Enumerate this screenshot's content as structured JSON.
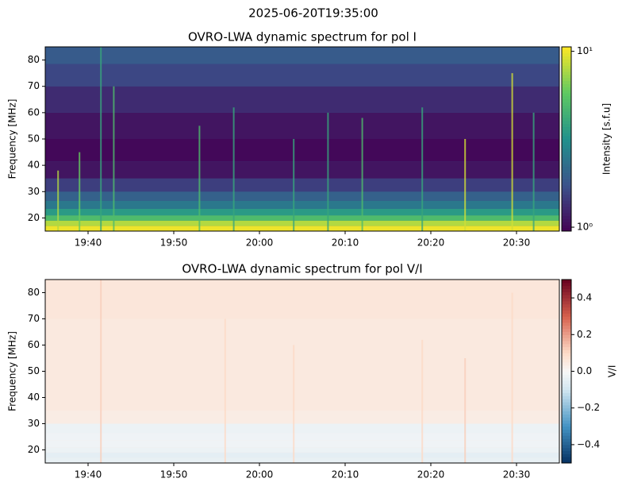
{
  "title": "2025-06-20T19:35:00",
  "chart_data": [
    {
      "type": "heatmap",
      "title": "OVRO-LWA dynamic spectrum for pol I",
      "ylabel": "Frequency [MHz]",
      "colorbar_label": "Intensity [s.f.u]",
      "colormap": "viridis",
      "colorbar_log": true,
      "xlim": [
        1175,
        1235
      ],
      "xticks": [
        {
          "value": 1180,
          "label": "19:40"
        },
        {
          "value": 1190,
          "label": "19:50"
        },
        {
          "value": 1200,
          "label": "20:00"
        },
        {
          "value": 1210,
          "label": "20:10"
        },
        {
          "value": 1220,
          "label": "20:20"
        },
        {
          "value": 1230,
          "label": "20:30"
        }
      ],
      "ylim": [
        15,
        85
      ],
      "yticks": [
        20,
        30,
        40,
        50,
        60,
        70,
        80
      ],
      "clim": [
        0.95,
        10.6
      ],
      "cticks": [
        {
          "value": 1,
          "label": "10⁰"
        },
        {
          "value": 10,
          "label": "10¹"
        }
      ],
      "frequencies": [
        16,
        18,
        20,
        22,
        25,
        28,
        32,
        38,
        45,
        55,
        65,
        75,
        82
      ],
      "intensity": [
        10,
        8,
        5,
        3.5,
        2.5,
        2,
        1.5,
        1.1,
        1,
        1.1,
        1.3,
        1.6,
        1.9
      ],
      "burst_times": [
        1176.5,
        1179,
        1181.5,
        1183,
        1193,
        1197,
        1204,
        1208,
        1212,
        1219,
        1224,
        1229.5,
        1232
      ],
      "burst_top": [
        38,
        45,
        85,
        70,
        55,
        62,
        50,
        60,
        58,
        62,
        50,
        75,
        60
      ],
      "burst_intensity": [
        8,
        6,
        4,
        5,
        5,
        4,
        4,
        4,
        5,
        4,
        9,
        9,
        4
      ]
    },
    {
      "type": "heatmap",
      "title": "OVRO-LWA dynamic spectrum for pol V/I",
      "ylabel": "Frequency [MHz]",
      "colorbar_label": "V/I",
      "colormap": "RdBu_r",
      "colorbar_log": false,
      "xlim": [
        1175,
        1235
      ],
      "xticks": [
        {
          "value": 1180,
          "label": "19:40"
        },
        {
          "value": 1190,
          "label": "19:50"
        },
        {
          "value": 1200,
          "label": "20:00"
        },
        {
          "value": 1210,
          "label": "20:10"
        },
        {
          "value": 1220,
          "label": "20:20"
        },
        {
          "value": 1230,
          "label": "20:30"
        }
      ],
      "ylim": [
        15,
        85
      ],
      "yticks": [
        20,
        30,
        40,
        50,
        60,
        70,
        80
      ],
      "clim": [
        -0.5,
        0.5
      ],
      "cticks": [
        {
          "value": -0.4,
          "label": "−0.4"
        },
        {
          "value": -0.2,
          "label": "−0.2"
        },
        {
          "value": 0,
          "label": "0.0"
        },
        0.2,
        0.4
      ],
      "frequencies": [
        16,
        18,
        20,
        22,
        25,
        28,
        32,
        38,
        45,
        55,
        65,
        75,
        82
      ],
      "intensity": [
        -0.04,
        -0.05,
        -0.03,
        -0.02,
        -0.02,
        -0.03,
        0.04,
        0.05,
        0.05,
        0.05,
        0.05,
        0.06,
        0.06
      ],
      "burst_times": [
        1181.5,
        1196,
        1204,
        1219,
        1224,
        1229.5
      ],
      "burst_top": [
        85,
        70,
        60,
        62,
        55,
        80
      ],
      "burst_intensity": [
        0.12,
        0.1,
        0.1,
        0.1,
        0.12,
        0.1
      ]
    }
  ]
}
